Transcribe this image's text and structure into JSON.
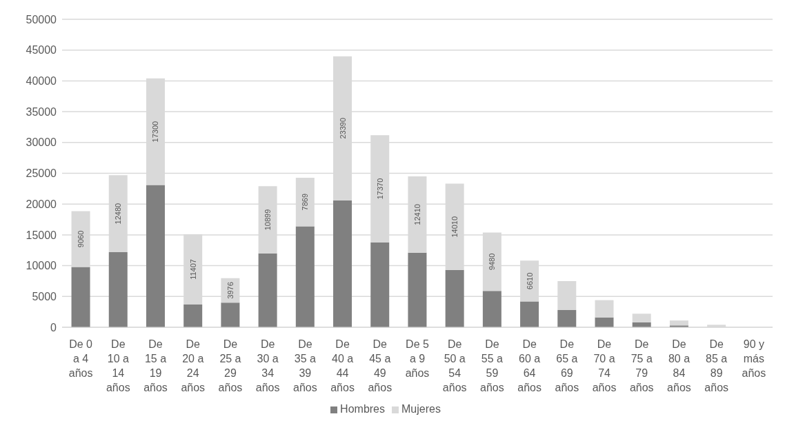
{
  "chart_data": {
    "type": "bar",
    "stacked": true,
    "categories": [
      "De 0 a 4 años",
      "De 10 a 14 años",
      "De 15 a 19 años",
      "De 20 a 24 años",
      "De 25 a 29 años",
      "De 30 a 34 años",
      "De 35 a 39 años",
      "De 40 a 44 años",
      "De 45 a 49 años",
      "De 5 a 9 años",
      "De 50 a 54 años",
      "De 55 a 59 años",
      "De 60 a 64 años",
      "De 65 a 69 años",
      "De 70 a 74 años",
      "De 75 a 79 años",
      "De 80 a 84 años",
      "De 85 a 89 años",
      "90 y más años"
    ],
    "series": [
      {
        "name": "Hombres",
        "color": "#808080",
        "values": [
          9800,
          12200,
          23100,
          3700,
          4000,
          12000,
          16400,
          20600,
          13800,
          12100,
          9300,
          5900,
          4200,
          2800,
          1600,
          800,
          300,
          null,
          null
        ]
      },
      {
        "name": "Mujeres",
        "color": "#d9d9d9",
        "values": [
          9060,
          12480,
          17300,
          11407,
          3976,
          10899,
          7869,
          23390,
          17370,
          12410,
          14010,
          9480,
          6610,
          4700,
          2800,
          1400,
          800,
          400,
          0
        ],
        "value_labels": [
          "9060",
          "12480",
          "17300",
          "11407",
          "3976",
          "10899",
          "7869",
          "23390",
          "17370",
          "12410",
          "14010",
          "9480",
          "6610",
          null,
          null,
          null,
          null,
          null,
          null
        ]
      }
    ],
    "ylim": [
      0,
      50000
    ],
    "yticks": [
      0,
      5000,
      10000,
      15000,
      20000,
      25000,
      30000,
      35000,
      40000,
      45000,
      50000
    ],
    "grid": "y",
    "legend": "bottom"
  }
}
